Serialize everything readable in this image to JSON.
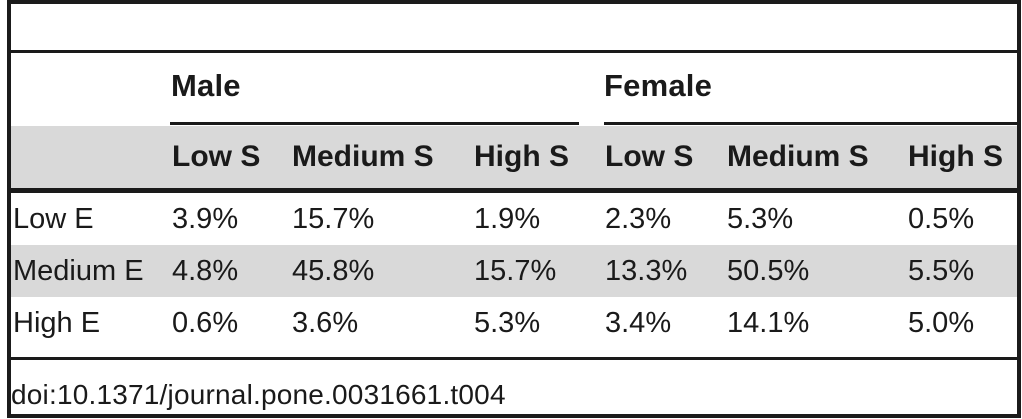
{
  "colors": {
    "band_gray": "#d9d9d9",
    "rule_black": "#1a1a1a",
    "text": "#1a1a1a",
    "background": "#ffffff"
  },
  "table": {
    "groups": [
      {
        "label": "Male"
      },
      {
        "label": "Female"
      }
    ],
    "sub_headers": [
      "Low S",
      "Medium S",
      "High S",
      "Low S",
      "Medium S",
      "High S"
    ],
    "rows": [
      {
        "label": "Low E",
        "values": [
          "3.9%",
          "15.7%",
          "1.9%",
          "2.3%",
          "5.3%",
          "0.5%"
        ]
      },
      {
        "label": "Medium E",
        "values": [
          "4.8%",
          "45.8%",
          "15.7%",
          "13.3%",
          "50.5%",
          "5.5%"
        ]
      },
      {
        "label": "High E",
        "values": [
          "0.6%",
          "3.6%",
          "5.3%",
          "3.4%",
          "14.1%",
          "5.0%"
        ]
      }
    ]
  },
  "footer": {
    "doi": "doi:10.1371/journal.pone.0031661.t004"
  },
  "chart_data": {
    "type": "table",
    "column_groups": [
      "Male",
      "Female"
    ],
    "columns": [
      "Low S",
      "Medium S",
      "High S",
      "Low S",
      "Medium S",
      "High S"
    ],
    "row_labels": [
      "Low E",
      "Medium E",
      "High E"
    ],
    "values_percent": [
      [
        3.9,
        15.7,
        1.9,
        2.3,
        5.3,
        0.5
      ],
      [
        4.8,
        45.8,
        15.7,
        13.3,
        50.5,
        5.5
      ],
      [
        0.6,
        3.6,
        5.3,
        3.4,
        14.1,
        5.0
      ]
    ]
  }
}
